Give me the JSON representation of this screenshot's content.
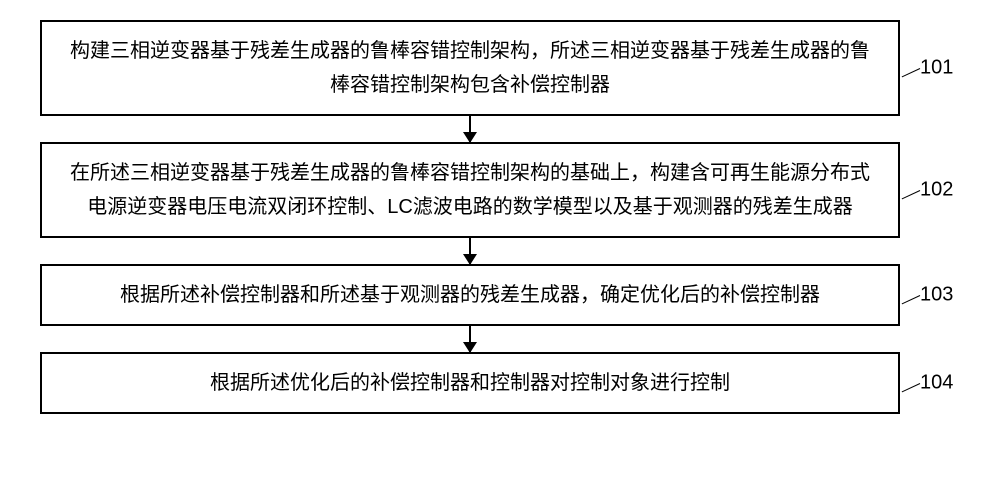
{
  "flowchart": {
    "type": "flowchart",
    "background_color": "#ffffff",
    "border_color": "#000000",
    "border_width": 2,
    "text_color": "#000000",
    "font_size": 20,
    "line_height": 1.7,
    "arrow_color": "#000000",
    "nodes": [
      {
        "id": "step1",
        "text": "构建三相逆变器基于残差生成器的鲁棒容错控制架构，所述三相逆变器基于残差生成器的鲁棒容错控制架构包含补偿控制器",
        "label": "101"
      },
      {
        "id": "step2",
        "text": "在所述三相逆变器基于残差生成器的鲁棒容错控制架构的基础上，构建含可再生能源分布式电源逆变器电压电流双闭环控制、LC滤波电路的数学模型以及基于观测器的残差生成器",
        "label": "102"
      },
      {
        "id": "step3",
        "text": "根据所述补偿控制器和所述基于观测器的残差生成器，确定优化后的补偿控制器",
        "label": "103"
      },
      {
        "id": "step4",
        "text": "根据所述优化后的补偿控制器和控制器对控制对象进行控制",
        "label": "104"
      }
    ],
    "edges": [
      {
        "from": "step1",
        "to": "step2"
      },
      {
        "from": "step2",
        "to": "step3"
      },
      {
        "from": "step3",
        "to": "step4"
      }
    ]
  }
}
